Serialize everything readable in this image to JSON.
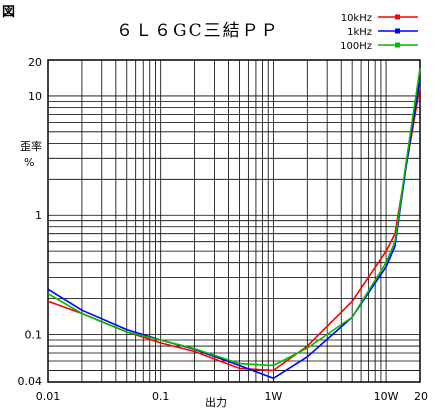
{
  "figure_label": "図",
  "chart_data": {
    "type": "line",
    "title": "６Ｌ６GC三結ＰＰ",
    "xlabel": "出力",
    "ylabel_line1": "歪率",
    "ylabel_line2": "%",
    "x_scale": "log",
    "y_scale": "log",
    "xlim": [
      0.01,
      20
    ],
    "ylim": [
      0.04,
      20
    ],
    "grid": true,
    "legend_position": "top-right",
    "x_tick_labels": [
      {
        "value": 0.01,
        "label": "0.01"
      },
      {
        "value": 0.1,
        "label": "0.1"
      },
      {
        "value": 1,
        "label": "1W"
      },
      {
        "value": 10,
        "label": "10W"
      },
      {
        "value": 20,
        "label": "20"
      }
    ],
    "y_tick_labels": [
      {
        "value": 20,
        "label": "20"
      },
      {
        "value": 10,
        "label": "10"
      },
      {
        "value": 1,
        "label": "1"
      },
      {
        "value": 0.1,
        "label": "0.1"
      },
      {
        "value": 0.04,
        "label": "0.04"
      }
    ],
    "series": [
      {
        "name": "10kHz",
        "color": "#ff0000",
        "points": [
          [
            0.01,
            0.19
          ],
          [
            0.02,
            0.15
          ],
          [
            0.05,
            0.105
          ],
          [
            0.1,
            0.085
          ],
          [
            0.2,
            0.072
          ],
          [
            0.5,
            0.052
          ],
          [
            1,
            0.05
          ],
          [
            2,
            0.08
          ],
          [
            5,
            0.19
          ],
          [
            10,
            0.5
          ],
          [
            12,
            0.7
          ],
          [
            15,
            2.5
          ],
          [
            20,
            12
          ]
        ]
      },
      {
        "name": "1kHz",
        "color": "#0000ff",
        "points": [
          [
            0.01,
            0.24
          ],
          [
            0.02,
            0.16
          ],
          [
            0.05,
            0.11
          ],
          [
            0.1,
            0.09
          ],
          [
            0.2,
            0.075
          ],
          [
            0.5,
            0.055
          ],
          [
            1,
            0.043
          ],
          [
            2,
            0.065
          ],
          [
            5,
            0.14
          ],
          [
            10,
            0.37
          ],
          [
            12,
            0.55
          ],
          [
            15,
            2.5
          ],
          [
            20,
            14
          ]
        ]
      },
      {
        "name": "100Hz",
        "color": "#00bb00",
        "points": [
          [
            0.01,
            0.22
          ],
          [
            0.02,
            0.15
          ],
          [
            0.05,
            0.105
          ],
          [
            0.1,
            0.09
          ],
          [
            0.2,
            0.076
          ],
          [
            0.5,
            0.057
          ],
          [
            1,
            0.055
          ],
          [
            2,
            0.077
          ],
          [
            5,
            0.14
          ],
          [
            10,
            0.4
          ],
          [
            12,
            0.6
          ],
          [
            15,
            2.7
          ],
          [
            20,
            17
          ]
        ]
      }
    ]
  }
}
